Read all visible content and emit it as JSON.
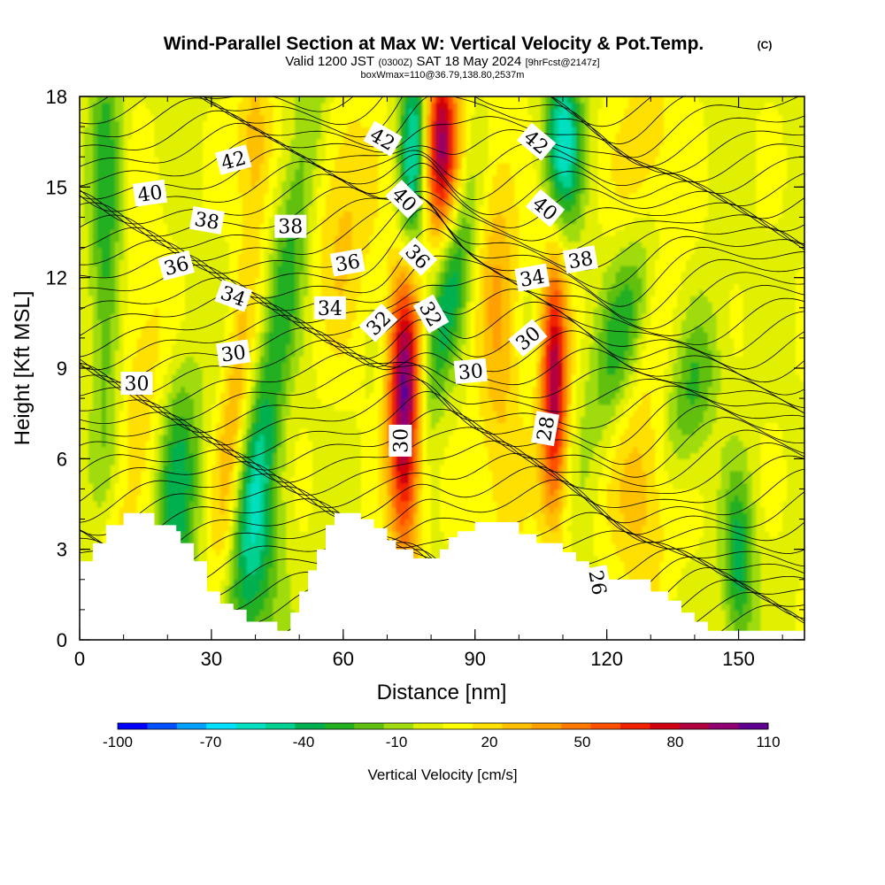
{
  "chart_data": {
    "type": "heatmap",
    "title": "Wind-Parallel Section at Max W: Vertical Velocity & Pot.Temp.",
    "title_badge": "(C)",
    "subtitle_valid": "Valid 1200 JST",
    "subtitle_utc": "(0300Z)",
    "subtitle_date": "SAT 18 May 2024",
    "subtitle_fcst": "[9hrFcst@2147z]",
    "subtitle_box": "boxWmax=110@36.79,138.80,2537m",
    "xlabel": "Distance [nm]",
    "ylabel": "Height [Kft MSL]",
    "xlim": [
      0,
      165
    ],
    "ylim": [
      0,
      18
    ],
    "xticks": [
      0,
      30,
      60,
      90,
      120,
      150
    ],
    "yticks": [
      0,
      3,
      6,
      9,
      12,
      15,
      18
    ],
    "colorbar": {
      "title": "Vertical Velocity [cm/s]",
      "tick_labels": [
        "-100",
        "-70",
        "-40",
        "-10",
        "20",
        "50",
        "80",
        "110"
      ],
      "tick_values": [
        -100,
        -70,
        -40,
        -10,
        20,
        50,
        80,
        110
      ],
      "levels": [
        -100,
        -90,
        -80,
        -70,
        -60,
        -50,
        -40,
        -30,
        -20,
        -10,
        0,
        10,
        20,
        30,
        40,
        50,
        60,
        70,
        80,
        90,
        100,
        110
      ],
      "colors": [
        "#0000ff",
        "#0050ff",
        "#00a0ff",
        "#00e0ff",
        "#00e0c0",
        "#00d090",
        "#00b050",
        "#20b020",
        "#60c010",
        "#a0dc10",
        "#e0f000",
        "#ffff00",
        "#ffe000",
        "#ffc000",
        "#ffa000",
        "#ff7800",
        "#ff5000",
        "#f02000",
        "#d00010",
        "#b00040",
        "#900070",
        "#600090"
      ]
    },
    "vertical_velocity_features": [
      {
        "x": 6,
        "z": 13.5,
        "sx": 2.5,
        "sz": 6,
        "w": -35,
        "tilt": 0
      },
      {
        "x": 8,
        "z": 3,
        "sx": 3,
        "sz": 1.5,
        "w": 20,
        "tilt": 0
      },
      {
        "x": 22,
        "z": 5,
        "sx": 3.5,
        "sz": 3,
        "w": -45,
        "tilt": 0.25
      },
      {
        "x": 35,
        "z": 7,
        "sx": 2.5,
        "sz": 4,
        "w": 35,
        "tilt": 0.6
      },
      {
        "x": 40,
        "z": 3,
        "sx": 4,
        "sz": 3,
        "w": -40,
        "tilt": 0
      },
      {
        "x": 46,
        "z": 11,
        "sx": 3,
        "sz": 7,
        "w": -35,
        "tilt": 1.0
      },
      {
        "x": 40,
        "z": 16.5,
        "sx": 3,
        "sz": 2,
        "w": 30,
        "tilt": 0
      },
      {
        "x": 74,
        "z": 8,
        "sx": 2.6,
        "sz": 3.6,
        "w": 110,
        "tilt": 0
      },
      {
        "x": 82,
        "z": 16.5,
        "sx": 3,
        "sz": 2.2,
        "w": 95,
        "tilt": 0
      },
      {
        "x": 76,
        "z": 16,
        "sx": 2.5,
        "sz": 3,
        "w": -70,
        "tilt": 0.3
      },
      {
        "x": 84,
        "z": 11.5,
        "sx": 3,
        "sz": 3,
        "w": -45,
        "tilt": 1.2
      },
      {
        "x": 95,
        "z": 12,
        "sx": 3.5,
        "sz": 4,
        "w": 30,
        "tilt": 0
      },
      {
        "x": 108,
        "z": 8.5,
        "sx": 2.2,
        "sz": 3,
        "w": 90,
        "tilt": 0
      },
      {
        "x": 110,
        "z": 16.5,
        "sx": 3,
        "sz": 2,
        "w": -65,
        "tilt": 0
      },
      {
        "x": 125,
        "z": 11,
        "sx": 4,
        "sz": 3,
        "w": -40,
        "tilt": 1.5
      },
      {
        "x": 139,
        "z": 8,
        "sx": 4,
        "sz": 2,
        "w": -30,
        "tilt": 1.2
      },
      {
        "x": 150,
        "z": 2.5,
        "sx": 2.5,
        "sz": 2,
        "w": -45,
        "tilt": 0
      },
      {
        "x": 130,
        "z": 15,
        "sx": 5,
        "sz": 3,
        "w": 30,
        "tilt": 0
      },
      {
        "x": 60,
        "z": 14,
        "sx": 5,
        "sz": 3,
        "w": 25,
        "tilt": 0
      },
      {
        "x": 97,
        "z": 5,
        "sx": 4,
        "sz": 2.5,
        "w": 15,
        "tilt": 0
      },
      {
        "x": 128,
        "z": 5,
        "sx": 5,
        "sz": 2.5,
        "w": 30,
        "tilt": 0
      },
      {
        "x": 15,
        "z": 9,
        "sx": 5,
        "sz": 3,
        "w": 20,
        "tilt": 0
      }
    ],
    "terrain": [
      [
        0,
        2.6
      ],
      [
        3,
        2.6
      ],
      [
        3,
        3.2
      ],
      [
        6,
        3.2
      ],
      [
        6,
        3.8
      ],
      [
        10,
        3.8
      ],
      [
        10,
        4.2
      ],
      [
        17,
        4.2
      ],
      [
        17,
        3.8
      ],
      [
        22,
        3.8
      ],
      [
        22,
        3.6
      ],
      [
        23,
        3.6
      ],
      [
        23,
        3.2
      ],
      [
        26,
        3.2
      ],
      [
        26,
        2.6
      ],
      [
        29,
        2.6
      ],
      [
        29,
        1.6
      ],
      [
        32,
        1.6
      ],
      [
        32,
        1.2
      ],
      [
        35,
        1.2
      ],
      [
        35,
        1.0
      ],
      [
        38,
        1.0
      ],
      [
        38,
        0.6
      ],
      [
        45,
        0.6
      ],
      [
        45,
        0.3
      ],
      [
        48,
        0.3
      ],
      [
        48,
        0.9
      ],
      [
        50,
        0.9
      ],
      [
        50,
        1.6
      ],
      [
        52,
        1.6
      ],
      [
        52,
        2.3
      ],
      [
        54,
        2.3
      ],
      [
        54,
        3.0
      ],
      [
        56,
        3.0
      ],
      [
        56,
        3.8
      ],
      [
        58,
        3.8
      ],
      [
        58,
        4.2
      ],
      [
        64,
        4.2
      ],
      [
        64,
        4.0
      ],
      [
        67,
        4.0
      ],
      [
        67,
        3.7
      ],
      [
        70,
        3.7
      ],
      [
        70,
        3.3
      ],
      [
        72,
        3.3
      ],
      [
        72,
        3.0
      ],
      [
        76,
        3.0
      ],
      [
        76,
        2.7
      ],
      [
        82,
        2.7
      ],
      [
        82,
        3.0
      ],
      [
        84,
        3.0
      ],
      [
        84,
        3.4
      ],
      [
        86,
        3.4
      ],
      [
        86,
        3.6
      ],
      [
        90,
        3.6
      ],
      [
        90,
        3.9
      ],
      [
        100,
        3.9
      ],
      [
        100,
        3.5
      ],
      [
        104,
        3.5
      ],
      [
        104,
        3.2
      ],
      [
        110,
        3.2
      ],
      [
        110,
        2.9
      ],
      [
        113,
        2.9
      ],
      [
        113,
        2.6
      ],
      [
        116,
        2.6
      ],
      [
        116,
        2.3
      ],
      [
        118,
        2.3
      ],
      [
        118,
        2.0
      ],
      [
        130,
        2.0
      ],
      [
        130,
        1.6
      ],
      [
        134,
        1.6
      ],
      [
        134,
        1.3
      ],
      [
        137,
        1.3
      ],
      [
        137,
        0.9
      ],
      [
        140,
        0.9
      ],
      [
        140,
        0.6
      ],
      [
        143,
        0.6
      ],
      [
        143,
        0.3
      ],
      [
        165,
        0.3
      ]
    ],
    "theta_contours": {
      "levels": [
        26,
        28,
        30,
        32,
        34,
        36,
        38,
        40,
        42
      ],
      "labels": [
        {
          "text": "42",
          "x": 35,
          "z": 15.9,
          "angle": -15
        },
        {
          "text": "40",
          "x": 16,
          "z": 14.8,
          "angle": -8
        },
        {
          "text": "38",
          "x": 29,
          "z": 13.9,
          "angle": 10
        },
        {
          "text": "38",
          "x": 48,
          "z": 13.7,
          "angle": 0
        },
        {
          "text": "36",
          "x": 22,
          "z": 12.4,
          "angle": -15
        },
        {
          "text": "36",
          "x": 61,
          "z": 12.5,
          "angle": -10
        },
        {
          "text": "34",
          "x": 35,
          "z": 11.4,
          "angle": 20
        },
        {
          "text": "34",
          "x": 57,
          "z": 11.0,
          "angle": 0
        },
        {
          "text": "30",
          "x": 35,
          "z": 9.5,
          "angle": -8
        },
        {
          "text": "30",
          "x": 13,
          "z": 8.5,
          "angle": 0
        },
        {
          "text": "42",
          "x": 69,
          "z": 16.6,
          "angle": 30
        },
        {
          "text": "40",
          "x": 74,
          "z": 14.6,
          "angle": 45
        },
        {
          "text": "36",
          "x": 77,
          "z": 12.7,
          "angle": 45
        },
        {
          "text": "32",
          "x": 68,
          "z": 10.5,
          "angle": -45
        },
        {
          "text": "32",
          "x": 80,
          "z": 10.8,
          "angle": 60
        },
        {
          "text": "30",
          "x": 73,
          "z": 6.6,
          "angle": -90
        },
        {
          "text": "30",
          "x": 89,
          "z": 8.9,
          "angle": -5
        },
        {
          "text": "42",
          "x": 104,
          "z": 16.5,
          "angle": 40
        },
        {
          "text": "40",
          "x": 106,
          "z": 14.3,
          "angle": 40
        },
        {
          "text": "34",
          "x": 103,
          "z": 12.0,
          "angle": -10
        },
        {
          "text": "30",
          "x": 102,
          "z": 10.0,
          "angle": -40
        },
        {
          "text": "38",
          "x": 114,
          "z": 12.6,
          "angle": -10
        },
        {
          "text": "28",
          "x": 106,
          "z": 7.0,
          "angle": -80
        },
        {
          "text": "26",
          "x": 118,
          "z": 1.9,
          "angle": 80
        }
      ]
    }
  }
}
